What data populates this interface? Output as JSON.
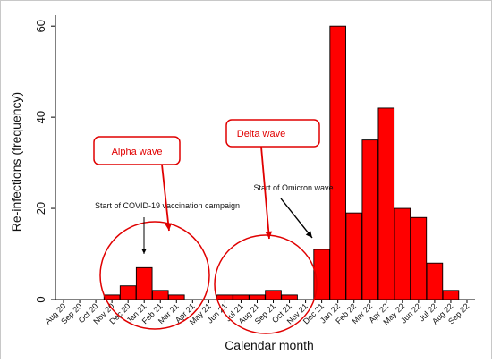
{
  "chart_data": {
    "type": "bar",
    "xlabel": "Calendar month",
    "ylabel": "Re-infections (frequency)",
    "ylim": [
      0,
      62
    ],
    "yticks": [
      0,
      20,
      40,
      60
    ],
    "grid": false,
    "bar_color": "#ff0000",
    "categories": [
      "Aug 20",
      "Sep 20",
      "Oct 20",
      "Nov 20",
      "Dec 20",
      "Jan 21",
      "Feb 21",
      "Mar 21",
      "Apr 21",
      "May 21",
      "Jun 21",
      "Jul 21",
      "Aug 21",
      "Sep 21",
      "Oct 21",
      "Nov 21",
      "Dec 21",
      "Jan 22",
      "Feb 22",
      "Mar 22",
      "Apr 22",
      "May 22",
      "Jun 22",
      "Jul 22",
      "Aug 22",
      "Sep 22"
    ],
    "values": [
      0,
      0,
      0,
      1,
      3,
      7,
      2,
      1,
      0,
      0,
      1,
      1,
      1,
      2,
      1,
      0,
      11,
      60,
      19,
      35,
      42,
      20,
      18,
      8,
      2,
      0
    ],
    "annotations": {
      "vaccination": "Start of COVID-19 vaccination campaign",
      "omicron": "Start of Omicron wave",
      "alpha": "Alpha wave",
      "delta": "Delta wave"
    },
    "annotation_color": "#e00000"
  }
}
